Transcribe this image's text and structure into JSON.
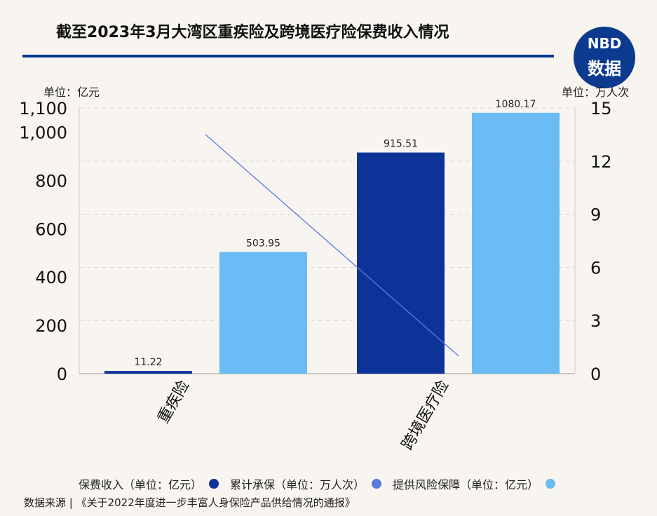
{
  "title": "截至2023年3月大湾区重疾险及跨境医疗险保费收入情况",
  "logo": {
    "line1": "NBD",
    "line2": "数据",
    "color": "#0b3a8f"
  },
  "left_unit": "单位：亿元",
  "right_unit": "单位：万人次",
  "source": "数据来源 | 《关于2022年度进一步丰富人身保险产品供给情况的通报》",
  "chart_data": {
    "type": "bar",
    "categories": [
      "重疾险",
      "跨境医疗险"
    ],
    "series": [
      {
        "name": "保费收入（单位：亿元）",
        "values": [
          11.22,
          915.51
        ],
        "color": "#0d3399",
        "axis": "left",
        "kind": "bar"
      },
      {
        "name": "累计承保（单位：万人次）",
        "values": [
          13.5,
          1.0
        ],
        "color": "#5b7ae0",
        "axis": "right",
        "kind": "line"
      },
      {
        "name": "提供风险保障（单位：亿元）",
        "values": [
          503.95,
          1080.17
        ],
        "color": "#6bbcf5",
        "axis": "left",
        "kind": "bar"
      }
    ],
    "y_left": {
      "ticks": [
        0,
        200,
        400,
        600,
        800,
        1000,
        1100
      ],
      "tick_labels": [
        "0",
        "200",
        "400",
        "600",
        "800",
        "1,000",
        "1,100"
      ],
      "ylim": [
        0,
        1100
      ]
    },
    "y_right": {
      "ticks": [
        0,
        3,
        6,
        9,
        12,
        15
      ],
      "tick_labels": [
        "0",
        "3",
        "6",
        "9",
        "12",
        "15"
      ],
      "ylim": [
        0,
        15
      ]
    },
    "bar_labels": [
      "11.22",
      "915.51",
      "503.95",
      "1080.17"
    ],
    "grid": true,
    "legend_position": "bottom"
  }
}
